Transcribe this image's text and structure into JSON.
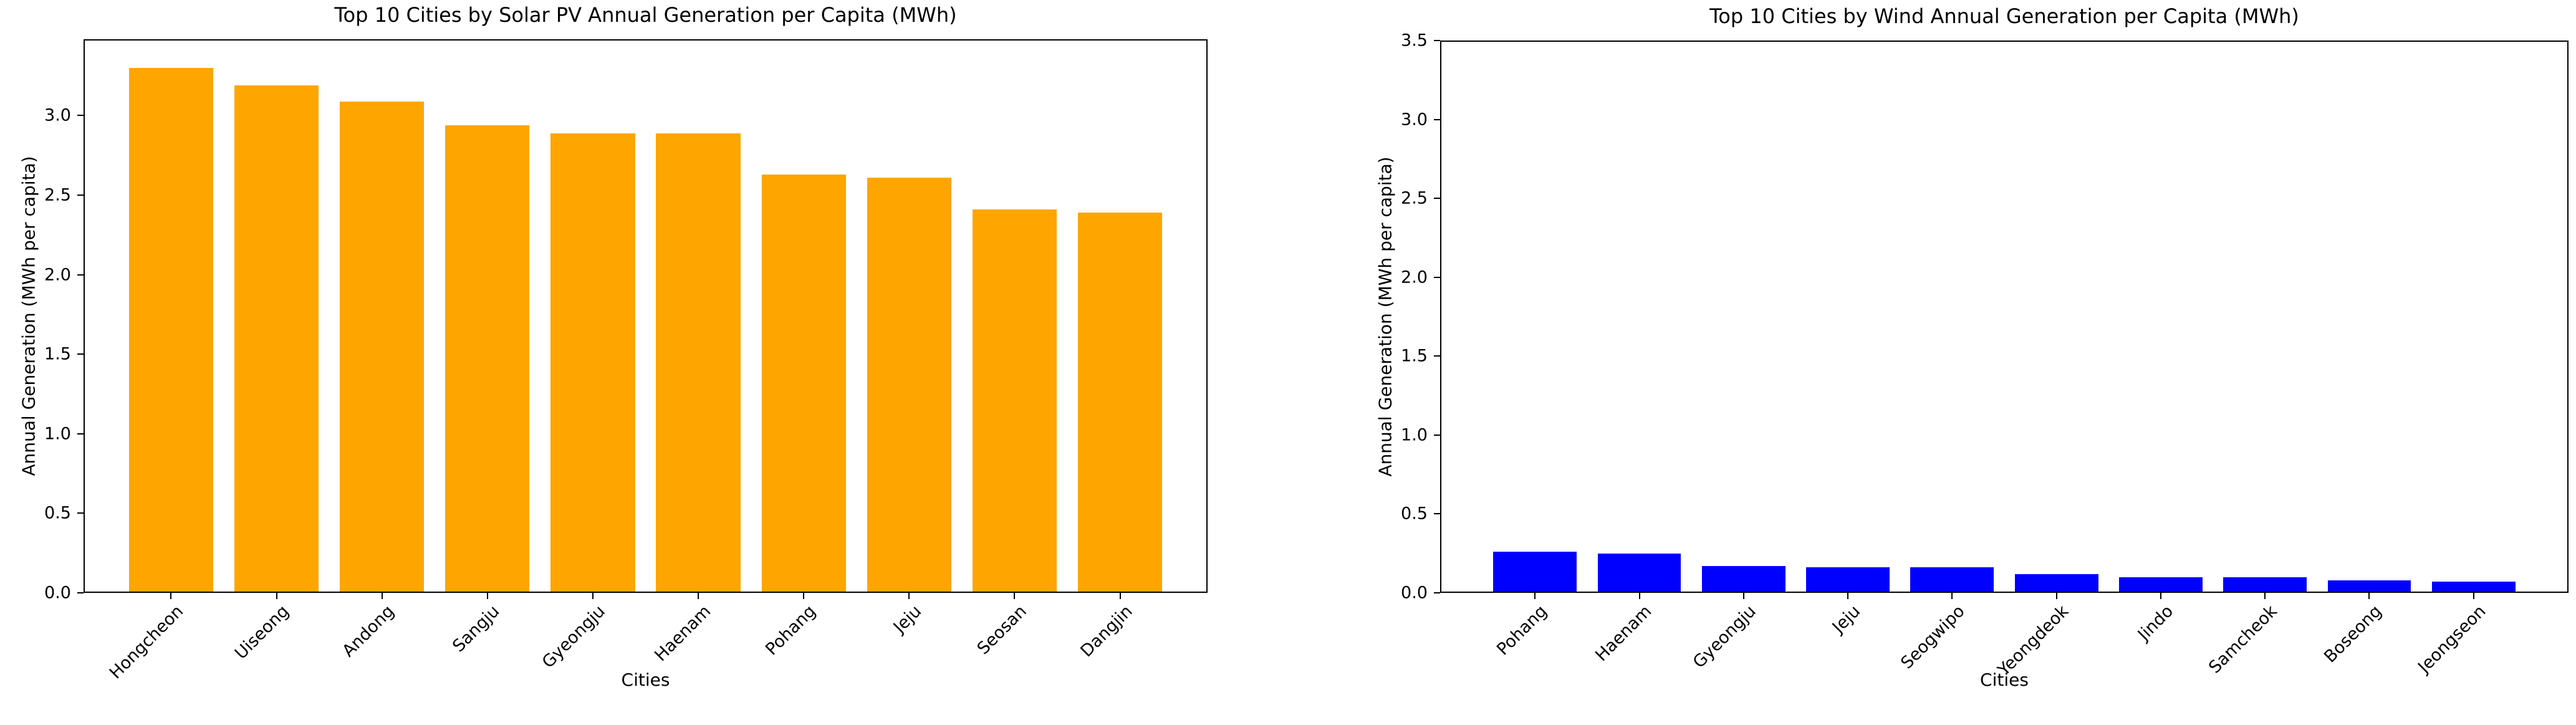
{
  "figure": {
    "background": "#ffffff",
    "axis_color": "#000000",
    "text_color": "#000000"
  },
  "chart_data": [
    {
      "type": "bar",
      "title": "Top 10 Cities by Solar PV Annual Generation per Capita (MWh)",
      "xlabel": "Cities",
      "ylabel": "Annual Generation (MWh per capita)",
      "categories": [
        "Hongcheon",
        "Uiseong",
        "Andong",
        "Sangju",
        "Gyeongju",
        "Haenam",
        "Pohang",
        "Jeju",
        "Seosan",
        "Dangjin"
      ],
      "values": [
        3.3,
        3.19,
        3.09,
        2.94,
        2.89,
        2.89,
        2.63,
        2.61,
        2.41,
        2.39
      ],
      "bar_color": "#FFA500",
      "ylim": [
        0,
        3.48
      ],
      "yticks": [
        0.0,
        0.5,
        1.0,
        1.5,
        2.0,
        2.5,
        3.0
      ],
      "x_tick_rotation": 45,
      "grid": false,
      "legend": "none"
    },
    {
      "type": "bar",
      "title": "Top 10 Cities by Wind Annual Generation per Capita (MWh)",
      "xlabel": "Cities",
      "ylabel": "Annual Generation (MWh per capita)",
      "categories": [
        "Pohang",
        "Haenam",
        "Gyeongju",
        "Jeju",
        "Seogwipo",
        "Yeongdeok",
        "Jindo",
        "Samcheok",
        "Boseong",
        "Jeongseon"
      ],
      "values": [
        0.26,
        0.25,
        0.17,
        0.16,
        0.16,
        0.12,
        0.1,
        0.1,
        0.08,
        0.07
      ],
      "bar_color": "#0000FF",
      "ylim": [
        0,
        3.5
      ],
      "yticks": [
        0.0,
        0.5,
        1.0,
        1.5,
        2.0,
        2.5,
        3.0,
        3.5
      ],
      "x_tick_rotation": 45,
      "grid": false,
      "legend": "none"
    }
  ]
}
